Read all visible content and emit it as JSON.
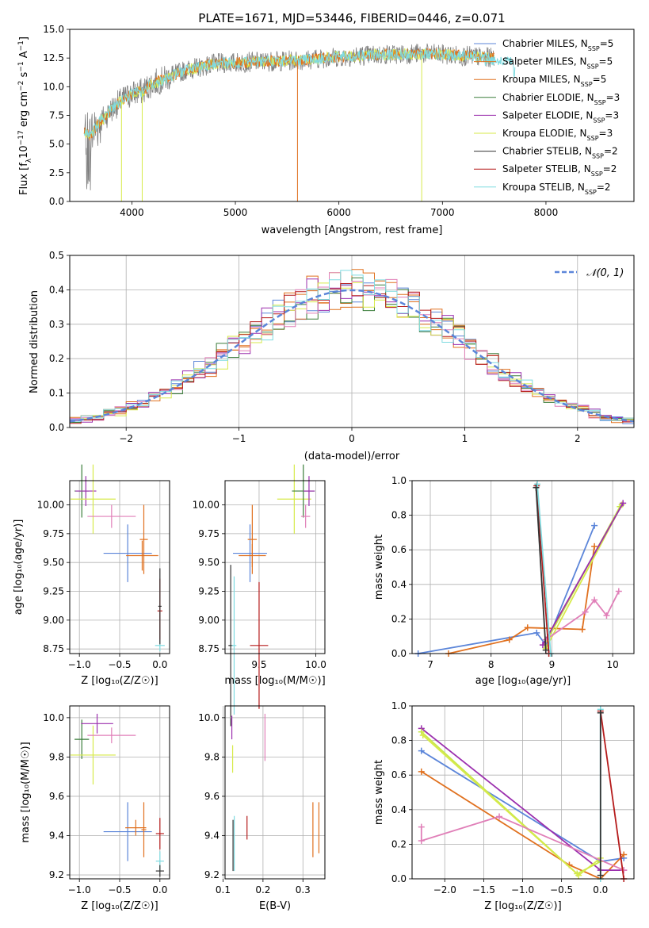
{
  "colors": {
    "chabrier_miles": "#5b85d9",
    "salpeter_miles": "#e0701e",
    "kroupa_miles": "#e0701e",
    "chabrier_elodie": "#3a7d3a",
    "salpeter_elodie": "#9b2fae",
    "kroupa_elodie": "#d7ea4a",
    "chabrier_stelib": "#333333",
    "salpeter_stelib": "#b51b1b",
    "kroupa_stelib": "#7fdbe0",
    "pink": "#e07fb8",
    "lime": "#c8e84a",
    "norm": "#5b85d9"
  },
  "chart_data": [
    {
      "id": "spectrum",
      "type": "line",
      "title": "PLATE=1671, MJD=53446, FIBERID=0446, z=0.071",
      "xlabel": "wavelength [Angstrom, rest frame]",
      "ylabel_parts": [
        "Flux [f",
        "λ",
        "10",
        "−17",
        " erg cm",
        "−2",
        " s",
        "−1",
        " A",
        "−1",
        "]"
      ],
      "xlim": [
        3400,
        8850
      ],
      "ylim": [
        0,
        15
      ],
      "xticks": [
        4000,
        5000,
        6000,
        7000,
        8000
      ],
      "yticks": [
        "0.0",
        "2.5",
        "5.0",
        "7.5",
        "10.0",
        "12.5",
        "15.0"
      ],
      "legend": [
        {
          "label": "Chabrier MILES, N",
          "sub": "SSP",
          "suffix": "=5",
          "color_key": "chabrier_miles"
        },
        {
          "label": "Salpeter MILES, N",
          "sub": "SSP",
          "suffix": "=5",
          "color_key": "salpeter_miles"
        },
        {
          "label": "Kroupa MILES, N",
          "sub": "SSP",
          "suffix": "=5",
          "color_key": "kroupa_miles"
        },
        {
          "label": "Chabrier ELODIE, N",
          "sub": "SSP",
          "suffix": "=3",
          "color_key": "chabrier_elodie"
        },
        {
          "label": "Salpeter ELODIE, N",
          "sub": "SSP",
          "suffix": "=3",
          "color_key": "salpeter_elodie"
        },
        {
          "label": "Kroupa ELODIE, N",
          "sub": "SSP",
          "suffix": "=3",
          "color_key": "kroupa_elodie"
        },
        {
          "label": "Chabrier STELIB, N",
          "sub": "SSP",
          "suffix": "=2",
          "color_key": "chabrier_stelib"
        },
        {
          "label": "Salpeter STELIB, N",
          "sub": "SSP",
          "suffix": "=2",
          "color_key": "salpeter_stelib"
        },
        {
          "label": "Kroupa STELIB, N",
          "sub": "SSP",
          "suffix": "=2",
          "color_key": "kroupa_stelib"
        }
      ],
      "continuum": {
        "x": [
          3540,
          3600,
          3700,
          3800,
          3900,
          4000,
          4100,
          4200,
          4300,
          4500,
          4800,
          5000,
          5300,
          5600,
          6000,
          6400,
          6800,
          7000,
          7200,
          7500
        ],
        "y": [
          6.0,
          5.8,
          7.0,
          8.0,
          8.8,
          9.4,
          9.6,
          10.3,
          10.6,
          11.4,
          12.0,
          12.1,
          12.2,
          12.3,
          12.6,
          12.8,
          12.9,
          12.8,
          12.7,
          12.5
        ]
      }
    },
    {
      "id": "residuals",
      "type": "line",
      "xlabel": "(data-model)/error",
      "ylabel": "Normed distribution",
      "xlim": [
        -2.5,
        2.5
      ],
      "ylim": [
        0,
        0.5
      ],
      "xticks": [
        "−2",
        "−1",
        "0",
        "1",
        "2"
      ],
      "yticks": [
        "0.0",
        "0.1",
        "0.2",
        "0.3",
        "0.4",
        "0.5"
      ],
      "legend": "𝒩(0, 1)",
      "bin_width": 0.1
    },
    {
      "id": "age_vs_Z",
      "type": "scatter",
      "xlabel": "Z [log₁₀(Z/Z☉)]",
      "ylabel": "age  [log₁₀(age/yr)]",
      "xlim": [
        -1.12,
        0.12
      ],
      "ylim": [
        8.71,
        10.21
      ],
      "xticks": [
        "−1.0",
        "−0.5",
        "0.0"
      ],
      "yticks": [
        "8.75",
        "9.00",
        "9.25",
        "9.50",
        "9.75",
        "10.00"
      ],
      "points": [
        {
          "color_key": "chabrier_elodie",
          "x": -0.97,
          "y": 10.12,
          "xerr": 0.09,
          "yerr": 0.23
        },
        {
          "color_key": "salpeter_elodie",
          "x": -0.92,
          "y": 10.12,
          "xerr": 0.13,
          "yerr": 0.13
        },
        {
          "color_key": "kroupa_elodie",
          "x": -0.83,
          "y": 10.05,
          "xerr": 0.28,
          "yerr": 0.3
        },
        {
          "color_key": "pink",
          "x": -0.6,
          "y": 9.9,
          "xerr": 0.3,
          "yerr": 0.1
        },
        {
          "color_key": "chabrier_miles",
          "x": -0.4,
          "y": 9.58,
          "xerr": 0.3,
          "yerr": 0.25
        },
        {
          "color_key": "salpeter_miles",
          "x": -0.22,
          "y": 9.56,
          "xerr": 0.2,
          "yerr": 0.13
        },
        {
          "color_key": "kroupa_miles",
          "x": -0.2,
          "y": 9.7,
          "xerr": 0.05,
          "yerr": 0.3
        },
        {
          "color_key": "salpeter_stelib",
          "x": 0.0,
          "y": 9.08,
          "xerr": 0.03,
          "yerr": 0.28
        },
        {
          "color_key": "kroupa_stelib",
          "x": 0.0,
          "y": 8.78,
          "xerr": 0.06,
          "yerr": 0.05
        },
        {
          "color_key": "chabrier_stelib",
          "x": 0.0,
          "y": 9.12,
          "xerr": 0.02,
          "yerr": 0.33
        }
      ]
    },
    {
      "id": "age_vs_mass",
      "type": "scatter",
      "xlabel": "mass [log₁₀(M/M☉)]",
      "ylabel": "",
      "xlim": [
        9.2,
        10.08
      ],
      "ylim": [
        8.71,
        10.21
      ],
      "xticks": [
        "9.5",
        "10.0"
      ],
      "yticks": [
        "8.75",
        "9.00",
        "9.25",
        "9.50",
        "9.75",
        "10.00"
      ],
      "points": [
        {
          "color_key": "chabrier_stelib",
          "x": 9.25,
          "y": 8.78,
          "xerr": 0.02,
          "yerr": 0.7
        },
        {
          "color_key": "kroupa_stelib",
          "x": 9.28,
          "y": 8.78,
          "xerr": 0.02,
          "yerr": 0.6
        },
        {
          "color_key": "salpeter_stelib",
          "x": 9.5,
          "y": 8.78,
          "xerr": 0.08,
          "yerr": 0.55
        },
        {
          "color_key": "chabrier_miles",
          "x": 9.42,
          "y": 9.58,
          "xerr": 0.15,
          "yerr": 0.25
        },
        {
          "color_key": "salpeter_miles",
          "x": 9.44,
          "y": 9.56,
          "xerr": 0.12,
          "yerr": 0.1
        },
        {
          "color_key": "kroupa_miles",
          "x": 9.44,
          "y": 9.7,
          "xerr": 0.04,
          "yerr": 0.3
        },
        {
          "color_key": "kroupa_elodie",
          "x": 9.81,
          "y": 10.05,
          "xerr": 0.15,
          "yerr": 0.3
        },
        {
          "color_key": "chabrier_elodie",
          "x": 9.89,
          "y": 10.12,
          "xerr": 0.1,
          "yerr": 0.23
        },
        {
          "color_key": "salpeter_elodie",
          "x": 9.94,
          "y": 10.12,
          "xerr": 0.05,
          "yerr": 0.13
        },
        {
          "color_key": "pink",
          "x": 9.91,
          "y": 9.9,
          "xerr": 0.04,
          "yerr": 0.1
        }
      ]
    },
    {
      "id": "weight_vs_age",
      "type": "line",
      "xlabel": "age  [log₁₀(age/yr)]",
      "ylabel": "mass weight",
      "xlim": [
        6.7,
        10.35
      ],
      "ylim": [
        0,
        1
      ],
      "xticks": [
        "7",
        "8",
        "9",
        "10"
      ],
      "yticks": [
        "0.0",
        "0.2",
        "0.4",
        "0.6",
        "0.8",
        "1.0"
      ],
      "series": [
        {
          "color_key": "chabrier_miles",
          "x": [
            6.8,
            8.75,
            8.9,
            9.7
          ],
          "y": [
            0.0,
            0.12,
            0.05,
            0.74
          ]
        },
        {
          "color_key": "salpeter_miles",
          "x": [
            7.3,
            8.3,
            8.6,
            9.5,
            9.7
          ],
          "y": [
            0.0,
            0.08,
            0.15,
            0.14,
            0.62
          ]
        },
        {
          "color_key": "kroupa_elodie",
          "x": [
            8.9,
            10.15
          ],
          "y": [
            0.03,
            0.86
          ]
        },
        {
          "color_key": "lime",
          "x": [
            8.88,
            10.12
          ],
          "y": [
            0.05,
            0.85
          ]
        },
        {
          "color_key": "salpeter_elodie",
          "x": [
            8.85,
            10.17
          ],
          "y": [
            0.05,
            0.87
          ]
        },
        {
          "color_key": "pink",
          "x": [
            8.9,
            9.55,
            9.7,
            9.9,
            10.1
          ],
          "y": [
            0.08,
            0.24,
            0.31,
            0.22,
            0.36
          ]
        },
        {
          "color_key": "salpeter_stelib",
          "x": [
            8.75,
            8.95
          ],
          "y": [
            0.97,
            0.0
          ]
        },
        {
          "color_key": "kroupa_stelib",
          "x": [
            8.76,
            8.98
          ],
          "y": [
            0.98,
            0.0
          ]
        },
        {
          "color_key": "chabrier_stelib",
          "x": [
            8.74,
            8.9
          ],
          "y": [
            0.96,
            0.02
          ]
        }
      ]
    },
    {
      "id": "mass_vs_Z",
      "type": "scatter",
      "xlabel": "Z [log₁₀(Z/Z☉)]",
      "ylabel": "mass [log₁₀(M/M☉)]",
      "xlim": [
        -1.12,
        0.12
      ],
      "ylim": [
        9.18,
        10.06
      ],
      "xticks": [
        "−1.0",
        "−0.5",
        "0.0"
      ],
      "yticks": [
        "9.2",
        "9.4",
        "9.6",
        "9.8",
        "10.0"
      ],
      "points": [
        {
          "color_key": "chabrier_elodie",
          "x": -0.97,
          "y": 9.89,
          "xerr": 0.09,
          "yerr": 0.1
        },
        {
          "color_key": "salpeter_elodie",
          "x": -0.78,
          "y": 9.97,
          "xerr": 0.2,
          "yerr": 0.05
        },
        {
          "color_key": "kroupa_elodie",
          "x": -0.83,
          "y": 9.81,
          "xerr": 0.28,
          "yerr": 0.15
        },
        {
          "color_key": "pink",
          "x": -0.6,
          "y": 9.91,
          "xerr": 0.3,
          "yerr": 0.04
        },
        {
          "color_key": "chabrier_miles",
          "x": -0.4,
          "y": 9.42,
          "xerr": 0.3,
          "yerr": 0.15
        },
        {
          "color_key": "salpeter_miles",
          "x": -0.3,
          "y": 9.44,
          "xerr": 0.13,
          "yerr": 0.04
        },
        {
          "color_key": "kroupa_miles",
          "x": -0.2,
          "y": 9.43,
          "xerr": 0.03,
          "yerr": 0.14
        },
        {
          "color_key": "salpeter_stelib",
          "x": 0.0,
          "y": 9.41,
          "xerr": 0.05,
          "yerr": 0.08
        },
        {
          "color_key": "kroupa_stelib",
          "x": 0.0,
          "y": 9.27,
          "xerr": 0.05,
          "yerr": 0.05
        },
        {
          "color_key": "chabrier_stelib",
          "x": 0.0,
          "y": 9.22,
          "xerr": 0.05,
          "yerr": 0.03
        }
      ]
    },
    {
      "id": "mass_vs_EBV",
      "type": "scatter",
      "xlabel": "E(B-V)",
      "ylabel": "",
      "xlim": [
        0.105,
        0.355
      ],
      "ylim": [
        9.18,
        10.06
      ],
      "xticks": [
        "0.1",
        "0.2",
        "0.3"
      ],
      "yticks": [
        "9.2",
        "9.4",
        "9.6",
        "9.8",
        "10.0"
      ],
      "points": [
        {
          "color_key": "chabrier_stelib",
          "x": 0.125,
          "y": 9.35,
          "xerr": 0,
          "yerr": 0.13
        },
        {
          "color_key": "kroupa_stelib",
          "x": 0.128,
          "y": 9.36,
          "xerr": 0,
          "yerr": 0.14
        },
        {
          "color_key": "kroupa_elodie",
          "x": 0.124,
          "y": 9.79,
          "xerr": 0,
          "yerr": 0.07
        },
        {
          "color_key": "salpeter_elodie",
          "x": 0.122,
          "y": 9.95,
          "xerr": 0,
          "yerr": 0.06
        },
        {
          "color_key": "salpeter_stelib",
          "x": 0.16,
          "y": 9.44,
          "xerr": 0,
          "yerr": 0.06
        },
        {
          "color_key": "pink",
          "x": 0.205,
          "y": 9.9,
          "xerr": 0,
          "yerr": 0.12
        },
        {
          "color_key": "kroupa_miles",
          "x": 0.325,
          "y": 9.43,
          "xerr": 0,
          "yerr": 0.14
        },
        {
          "color_key": "salpeter_miles",
          "x": 0.34,
          "y": 9.44,
          "xerr": 0,
          "yerr": 0.13
        }
      ]
    },
    {
      "id": "weight_vs_Z",
      "type": "line",
      "xlabel": "Z [log₁₀(Z/Z☉)]",
      "ylabel": "mass weight",
      "xlim": [
        -2.42,
        0.43
      ],
      "ylim": [
        0,
        1
      ],
      "xticks": [
        "−2.0",
        "−1.5",
        "−1.0",
        "−0.5",
        "0.0"
      ],
      "yticks": [
        "0.0",
        "0.2",
        "0.4",
        "0.6",
        "0.8",
        "1.0"
      ],
      "series": [
        {
          "color_key": "chabrier_miles",
          "x": [
            -2.3,
            0.0,
            0.3
          ],
          "y": [
            0.74,
            0.1,
            0.12
          ]
        },
        {
          "color_key": "salpeter_miles",
          "x": [
            -2.3,
            -0.4,
            0.0,
            0.3
          ],
          "y": [
            0.62,
            0.08,
            0.0,
            0.14
          ]
        },
        {
          "color_key": "salpeter_elodie",
          "x": [
            -2.3,
            0.0,
            0.3
          ],
          "y": [
            0.87,
            0.05,
            0.05
          ]
        },
        {
          "color_key": "lime",
          "x": [
            -2.3,
            -0.3,
            0.0
          ],
          "y": [
            0.85,
            0.03,
            0.1
          ]
        },
        {
          "color_key": "kroupa_elodie",
          "x": [
            -2.28,
            -0.28,
            0.0
          ],
          "y": [
            0.83,
            0.02,
            0.12
          ]
        },
        {
          "color_key": "pink",
          "x": [
            -2.3,
            -2.3,
            -1.3,
            0.3
          ],
          "y": [
            0.3,
            0.22,
            0.36,
            0.05
          ]
        },
        {
          "color_key": "salpeter_stelib",
          "x": [
            0.0,
            0.3
          ],
          "y": [
            0.97,
            0.0
          ]
        },
        {
          "color_key": "kroupa_stelib",
          "x": [
            0.0,
            0.0
          ],
          "y": [
            0.98,
            0.0
          ]
        },
        {
          "color_key": "chabrier_stelib",
          "x": [
            0.0,
            0.0
          ],
          "y": [
            0.96,
            0.02
          ]
        }
      ]
    }
  ]
}
